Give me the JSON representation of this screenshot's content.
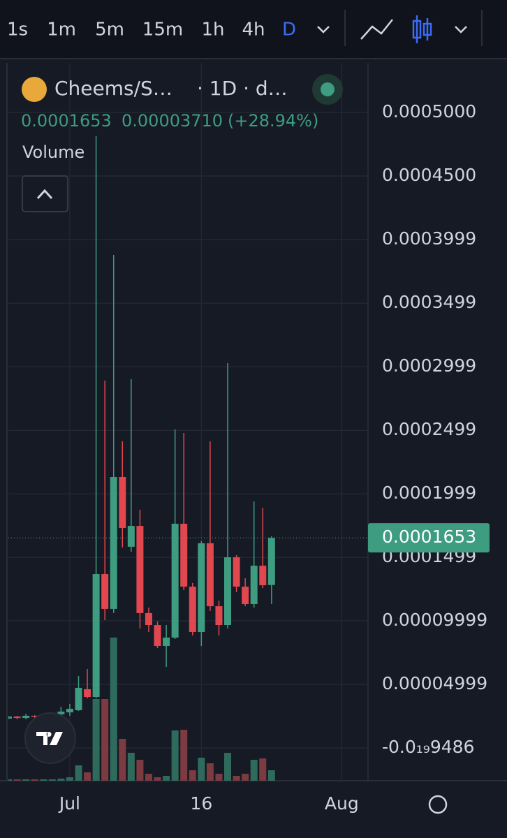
{
  "toolbar": {
    "intervals": [
      "1s",
      "1m",
      "5m",
      "15m",
      "1h",
      "4h",
      "D"
    ],
    "active": "D"
  },
  "chart_data": {
    "type": "candlestick",
    "symbol": "Cheems/S…",
    "interval": "· 1D · d…",
    "stats": [
      "0.0001653",
      "0.00003710",
      "(+28.94%)"
    ],
    "volume_title": "Volume",
    "x": [
      "06-24",
      "06-25",
      "06-26",
      "06-27",
      "06-28",
      "06-29",
      "06-30",
      "07-01",
      "07-02",
      "07-03",
      "07-04",
      "07-05",
      "07-06",
      "07-07",
      "07-08",
      "07-09",
      "07-10",
      "07-11",
      "07-12",
      "07-13",
      "07-14",
      "07-15",
      "07-16",
      "07-17",
      "07-18",
      "07-19",
      "07-20",
      "07-21",
      "07-22",
      "07-23",
      "07-24"
    ],
    "open": [
      2.31e-05,
      2.47e-05,
      2.36e-05,
      2.53e-05,
      2.47e-05,
      2.53e-05,
      2.64e-05,
      2.8e-05,
      2.97e-05,
      4.62e-05,
      4.01e-05,
      0.0001368,
      0.0001094,
      0.0002132,
      0.0001583,
      0.0001747,
      0.0001061,
      9.67e-05,
      8.02e-05,
      8.68e-05,
      0.0001764,
      0.0001269,
      9.12e-05,
      0.000161,
      0.0001115,
      9.67e-05,
      0.00015,
      0.0001269,
      0.0001132,
      0.0001434,
      0.0001282
    ],
    "high": [
      2.53e-05,
      2.53e-05,
      2.69e-05,
      2.58e-05,
      2.58e-05,
      2.8e-05,
      3.24e-05,
      3.46e-05,
      5.66e-05,
      6.21e-05,
      0.0004814,
      0.000289,
      0.0003879,
      0.0002412,
      0.0002901,
      0.0001874,
      0.0001104,
      9.95e-05,
      9.67e-05,
      0.0002506,
      0.0002478,
      0.0001297,
      0.0001627,
      0.0002412,
      0.0001159,
      0.0003028,
      0.0001517,
      0.0001335,
      0.000194,
      0.000189,
      0.0001665
    ],
    "low": [
      2.25e-05,
      2.25e-05,
      2.25e-05,
      2.36e-05,
      2.42e-05,
      2.42e-05,
      2.47e-05,
      2.53e-05,
      2.91e-05,
      3.9e-05,
      3.9e-05,
      0.0001006,
      0.0001061,
      0.0001577,
      0.0001544,
      9.4e-05,
      9.12e-05,
      7.86e-05,
      6.37e-05,
      8.57e-05,
      0.0001242,
      8.85e-05,
      8.02e-05,
      0.0001077,
      8.85e-05,
      9.4e-05,
      0.0001225,
      0.0001115,
      0.0001104,
      0.0001258,
      0.0001132
    ],
    "close": [
      2.47e-05,
      2.36e-05,
      2.53e-05,
      2.47e-05,
      2.53e-05,
      2.64e-05,
      2.86e-05,
      3.08e-05,
      4.73e-05,
      4.01e-05,
      0.0001368,
      0.0001094,
      0.0002132,
      0.0001731,
      0.0001747,
      0.0001061,
      9.67e-05,
      8.02e-05,
      8.68e-05,
      0.0001764,
      0.0001269,
      9.12e-05,
      0.000161,
      0.0001115,
      9.67e-05,
      0.00015,
      0.0001269,
      0.0001132,
      0.0001434,
      0.000128,
      0.0001653
    ],
    "volume": [
      2,
      2,
      2,
      2,
      2,
      2,
      3,
      5,
      22,
      12,
      117,
      117,
      205,
      60,
      40,
      30,
      10,
      5,
      7,
      72,
      73,
      15,
      33,
      25,
      10,
      40,
      7,
      10,
      30,
      32,
      15
    ],
    "volume_lim": [
      0,
      400
    ],
    "up_color": "#3e9c80",
    "down_color": "#e0474f",
    "volume_up_color": "#2f6b5d",
    "volume_down_color": "#7c3a41",
    "xlim": [
      "06-24",
      "08-04"
    ],
    "xticks": [
      {
        "value": "07-01",
        "label": "Jul"
      },
      {
        "value": "07-16",
        "label": "16"
      },
      {
        "value": "08-01",
        "label": "Aug"
      }
    ],
    "ylim": [
      -2.58e-05,
      0.000539
    ],
    "yticks": [
      {
        "value": 0.0005,
        "label": "0.0005000"
      },
      {
        "value": 0.00045,
        "label": "0.0004500"
      },
      {
        "value": 0.0003999,
        "label": "0.0003999"
      },
      {
        "value": 0.0003499,
        "label": "0.0003499"
      },
      {
        "value": 0.0002999,
        "label": "0.0002999"
      },
      {
        "value": 0.0002499,
        "label": "0.0002499"
      },
      {
        "value": 0.0001999,
        "label": "0.0001999"
      },
      {
        "value": 0.0001499,
        "label": "0.0001499"
      },
      {
        "value": 9.999e-05,
        "label": "0.00009999"
      },
      {
        "value": 4.999e-05,
        "label": "0.00004999"
      },
      {
        "value": -9.486e-20,
        "label": "-0.0₁₉9486"
      }
    ],
    "current_price": {
      "value": 0.0001653,
      "label": "0.0001653"
    },
    "grid": true
  }
}
